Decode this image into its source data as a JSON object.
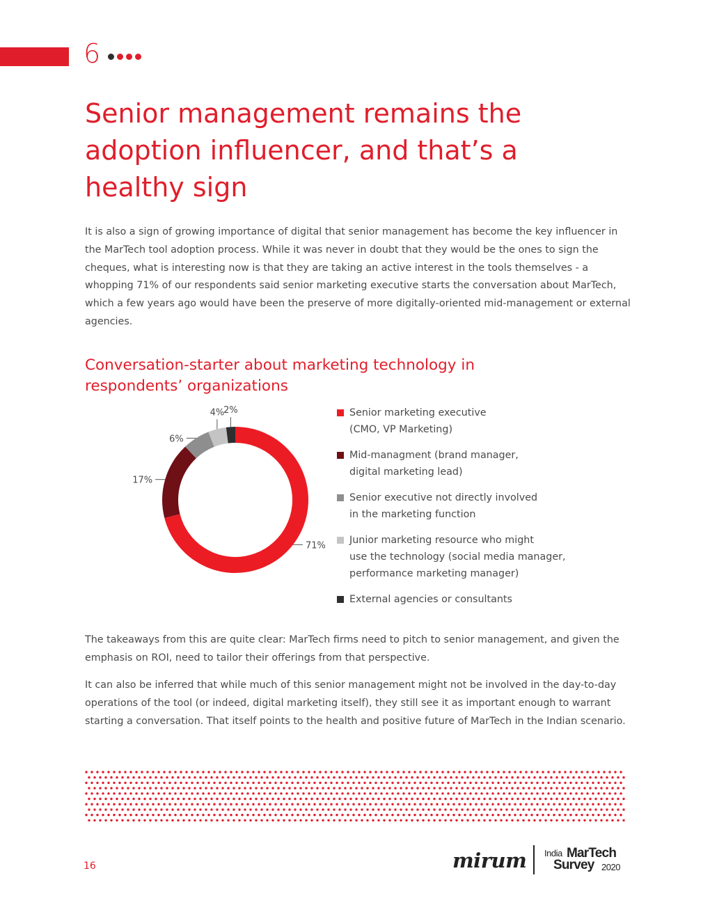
{
  "header": {
    "chapter_number": "6",
    "title": "Senior management remains the adoption influencer, and that’s a healthy sign"
  },
  "intro_paragraph": "It is also a sign of growing importance of digital that senior management has become the key influencer in the MarTech tool adoption process. While it was never in doubt that they would be the ones to sign the cheques, what is interesting now is that they are taking an active interest in the tools themselves - a whopping 71% of our respondents said senior marketing executive starts the conversation about MarTech, which a few years ago would have been the preserve of more digitally-oriented mid-management or external agencies.",
  "chart_data": {
    "type": "pie",
    "donut": true,
    "title": "Conversation-starter about marketing technology in respondents’ organizations",
    "legend_placement": "right",
    "series": [
      {
        "label": "Senior marketing executive\n(CMO, VP Marketing)",
        "value": 71,
        "value_label": "71%",
        "color": "#ec1c24"
      },
      {
        "label": "Mid-managment (brand manager,\ndigital marketing lead)",
        "value": 17,
        "value_label": "17%",
        "color": "#6e1016"
      },
      {
        "label": "Senior executive not directly involved\nin the marketing function",
        "value": 6,
        "value_label": "6%",
        "color": "#8e8e8e"
      },
      {
        "label": "Junior marketing resource who might\nuse the technology (social media manager,\nperformance marketing manager)",
        "value": 4,
        "value_label": "4%",
        "color": "#c4c4c4"
      },
      {
        "label": "External agencies or consultants",
        "value": 2,
        "value_label": "2%",
        "color": "#2e2e30"
      }
    ]
  },
  "takeaway_paragraph_1": "The takeaways from this are quite clear: MarTech firms need to pitch to senior management, and given the emphasis on ROI, need to tailor their offerings from that perspective.",
  "takeaway_paragraph_2": "It can also be inferred that while much of this senior management might not be involved in the day-to-day operations of the tool (or indeed, digital marketing itself), they still see it as important enough to warrant starting a conversation. That itself points to the health and positive future of MarTech in the Indian scenario.",
  "footer": {
    "page_number": "16",
    "logo_mirum": "mirum",
    "logo_survey_india": "India",
    "logo_survey_martech": "MarTech",
    "logo_survey_survey": "Survey",
    "logo_survey_year": "2020"
  },
  "colors": {
    "accent": "#e01e2b"
  }
}
